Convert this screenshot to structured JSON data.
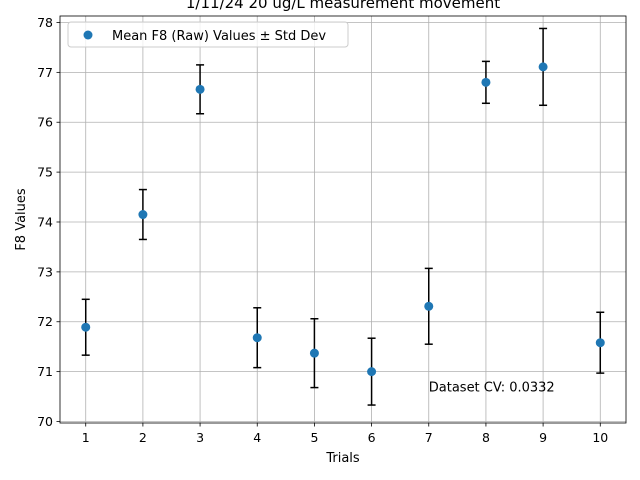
{
  "chart_data": {
    "type": "scatter",
    "title": "1/11/24 20 ug/L measurement movement",
    "xlabel": "Trials",
    "ylabel": "F8 Values",
    "xlim": [
      0.55,
      10.45
    ],
    "ylim": [
      69.97,
      78.13
    ],
    "xticks": [
      1,
      2,
      3,
      4,
      5,
      6,
      7,
      8,
      9,
      10
    ],
    "yticks": [
      70,
      71,
      72,
      73,
      74,
      75,
      76,
      77,
      78
    ],
    "grid": true,
    "legend": {
      "placement": "top-left",
      "entries": [
        "Mean F8 (Raw) Values ± Std Dev"
      ]
    },
    "series": [
      {
        "name": "Mean F8 (Raw) Values ± Std Dev",
        "color": "#1f77b4",
        "x": [
          1,
          2,
          3,
          4,
          5,
          6,
          7,
          8,
          9,
          10
        ],
        "y": [
          71.89,
          74.15,
          76.66,
          71.68,
          71.37,
          71.0,
          72.31,
          76.8,
          77.11,
          71.58
        ],
        "yerr": [
          0.56,
          0.5,
          0.49,
          0.6,
          0.69,
          0.67,
          0.76,
          0.42,
          0.77,
          0.61
        ]
      }
    ],
    "annotations": [
      {
        "text": "Dataset CV: 0.0332",
        "x": 7.0,
        "y": 70.8
      }
    ]
  }
}
